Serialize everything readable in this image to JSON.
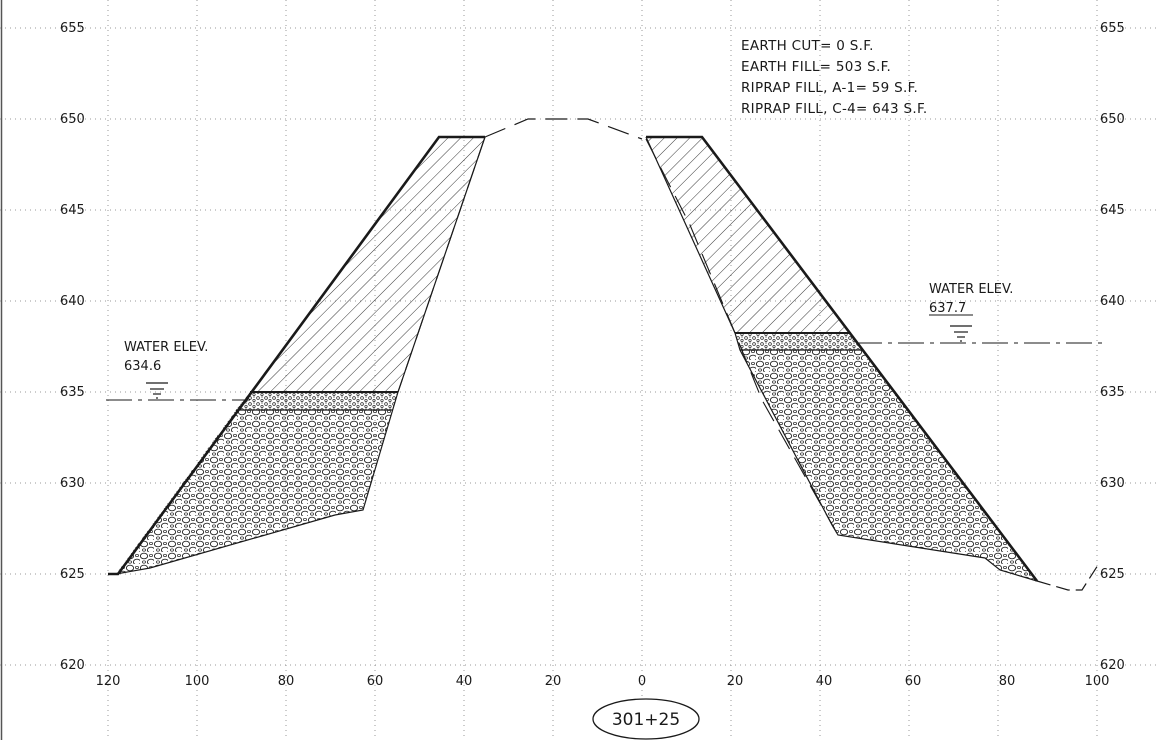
{
  "station": "301+25",
  "y_axis": {
    "labels_left": [
      "655",
      "650",
      "645",
      "640",
      "635",
      "630",
      "625",
      "620"
    ],
    "labels_right": [
      "655",
      "650",
      "645",
      "640",
      "635",
      "630",
      "625",
      "620"
    ]
  },
  "x_axis": {
    "labels": [
      "120",
      "100",
      "80",
      "60",
      "40",
      "20",
      "0",
      "20",
      "40",
      "60",
      "80",
      "100"
    ]
  },
  "quantities": {
    "earth_cut": "EARTH CUT= 0 S.F.",
    "earth_fill": "EARTH FILL= 503 S.F.",
    "riprap_a1": "RIPRAP FILL, A-1= 59 S.F.",
    "riprap_c4": "RIPRAP FILL, C-4= 643 S.F."
  },
  "water_left": {
    "label": "WATER ELEV.",
    "value": "634.6"
  },
  "water_right": {
    "label": "WATER ELEV.",
    "value": "637.7"
  },
  "colors": {
    "line": "#1a1a1a",
    "grid": "#9a9a9a",
    "background": "#ffffff"
  }
}
